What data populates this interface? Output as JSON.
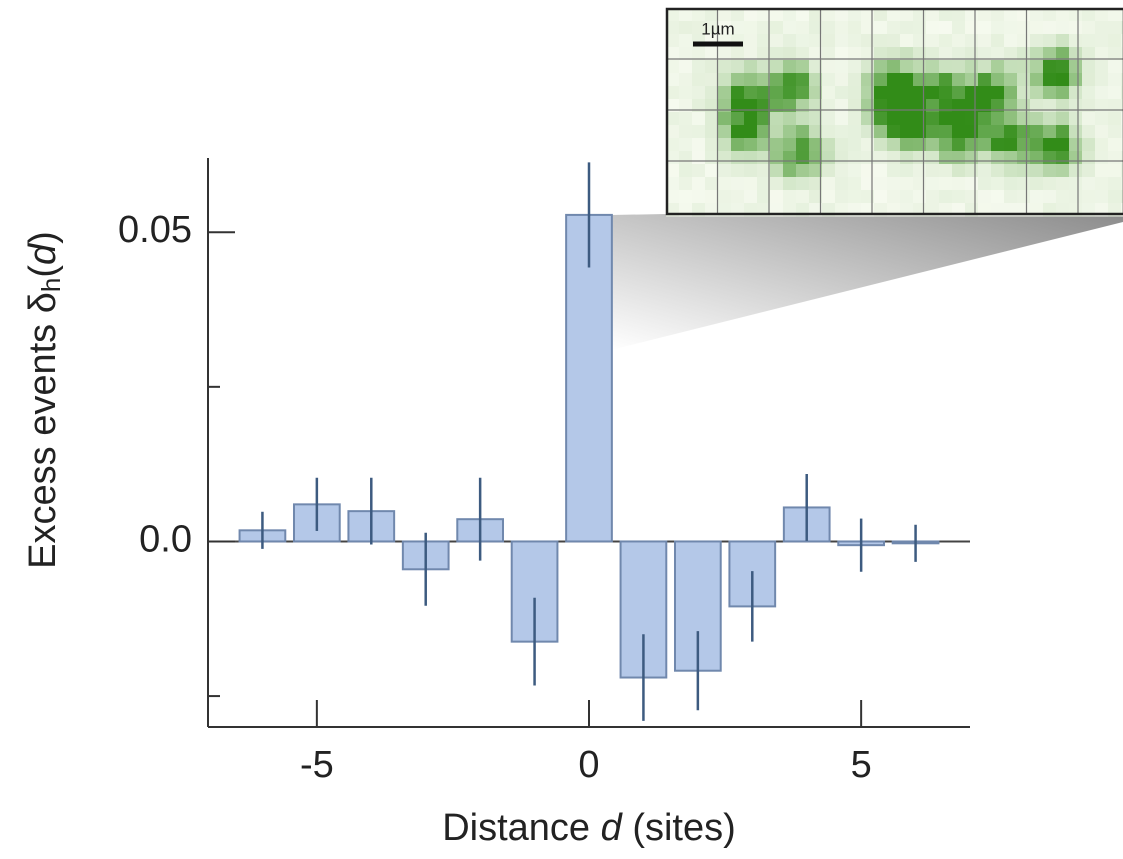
{
  "chart_data": {
    "type": "bar",
    "y_label_parts": [
      "Excess events δ",
      "h",
      "(",
      "d",
      ")"
    ],
    "x_label_parts": [
      "Distance ",
      "d",
      " (sites)"
    ],
    "x": [
      -6,
      -5,
      -4,
      -3,
      -2,
      -1,
      0,
      1,
      2,
      3,
      4,
      5,
      6
    ],
    "values": [
      0.0018,
      0.006,
      0.0049,
      -0.0045,
      0.0036,
      -0.0162,
      0.0528,
      -0.022,
      -0.0209,
      -0.0105,
      0.0055,
      -0.0006,
      -0.0003
    ],
    "errors": [
      0.003,
      0.0043,
      0.0054,
      0.0059,
      0.0067,
      0.0071,
      0.0085,
      0.007,
      0.0064,
      0.0057,
      0.0054,
      0.0043,
      0.003
    ],
    "color": "#b4c8e8",
    "edge_color": "#7088ad",
    "error_color": "#3d5b80",
    "xlim": [
      -7,
      7
    ],
    "ylim": [
      -0.03,
      0.062
    ],
    "xticks": [
      -5,
      0,
      5
    ],
    "yticks": [
      {
        "value": 0,
        "label": "0.0"
      },
      0.05
    ],
    "minor_yticks": [
      -0.025,
      0.025
    ],
    "inset_scale_label": "1µm"
  }
}
